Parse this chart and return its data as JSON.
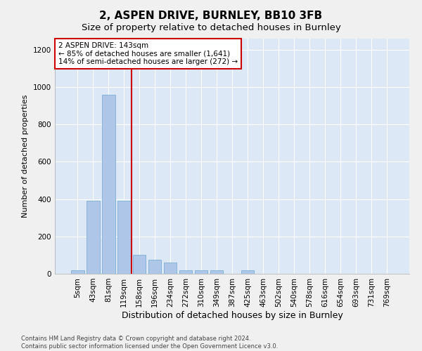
{
  "title1": "2, ASPEN DRIVE, BURNLEY, BB10 3FB",
  "title2": "Size of property relative to detached houses in Burnley",
  "xlabel": "Distribution of detached houses by size in Burnley",
  "ylabel": "Number of detached properties",
  "footer1": "Contains HM Land Registry data © Crown copyright and database right 2024.",
  "footer2": "Contains public sector information licensed under the Open Government Licence v3.0.",
  "annotation_line1": "2 ASPEN DRIVE: 143sqm",
  "annotation_line2": "← 85% of detached houses are smaller (1,641)",
  "annotation_line3": "14% of semi-detached houses are larger (272) →",
  "bins": [
    "5sqm",
    "43sqm",
    "81sqm",
    "119sqm",
    "158sqm",
    "196sqm",
    "234sqm",
    "272sqm",
    "310sqm",
    "349sqm",
    "387sqm",
    "425sqm",
    "463sqm",
    "502sqm",
    "540sqm",
    "578sqm",
    "616sqm",
    "654sqm",
    "693sqm",
    "731sqm",
    "769sqm"
  ],
  "values": [
    20,
    390,
    960,
    390,
    100,
    75,
    60,
    20,
    20,
    20,
    0,
    20,
    0,
    0,
    0,
    0,
    0,
    0,
    0,
    0,
    0
  ],
  "bar_color": "#aec6e8",
  "bar_edge_color": "#7aafd4",
  "red_line_x": 3.5,
  "ylim": [
    0,
    1260
  ],
  "yticks": [
    0,
    200,
    400,
    600,
    800,
    1000,
    1200
  ],
  "bg_color": "#dce8f5",
  "fig_color": "#f0f0f0",
  "annotation_box_color": "#ffffff",
  "annotation_box_edge": "#cc0000",
  "red_line_color": "#cc0000",
  "title1_fontsize": 11,
  "title2_fontsize": 9.5,
  "xlabel_fontsize": 9,
  "ylabel_fontsize": 8,
  "tick_fontsize": 7.5,
  "footer_fontsize": 6
}
